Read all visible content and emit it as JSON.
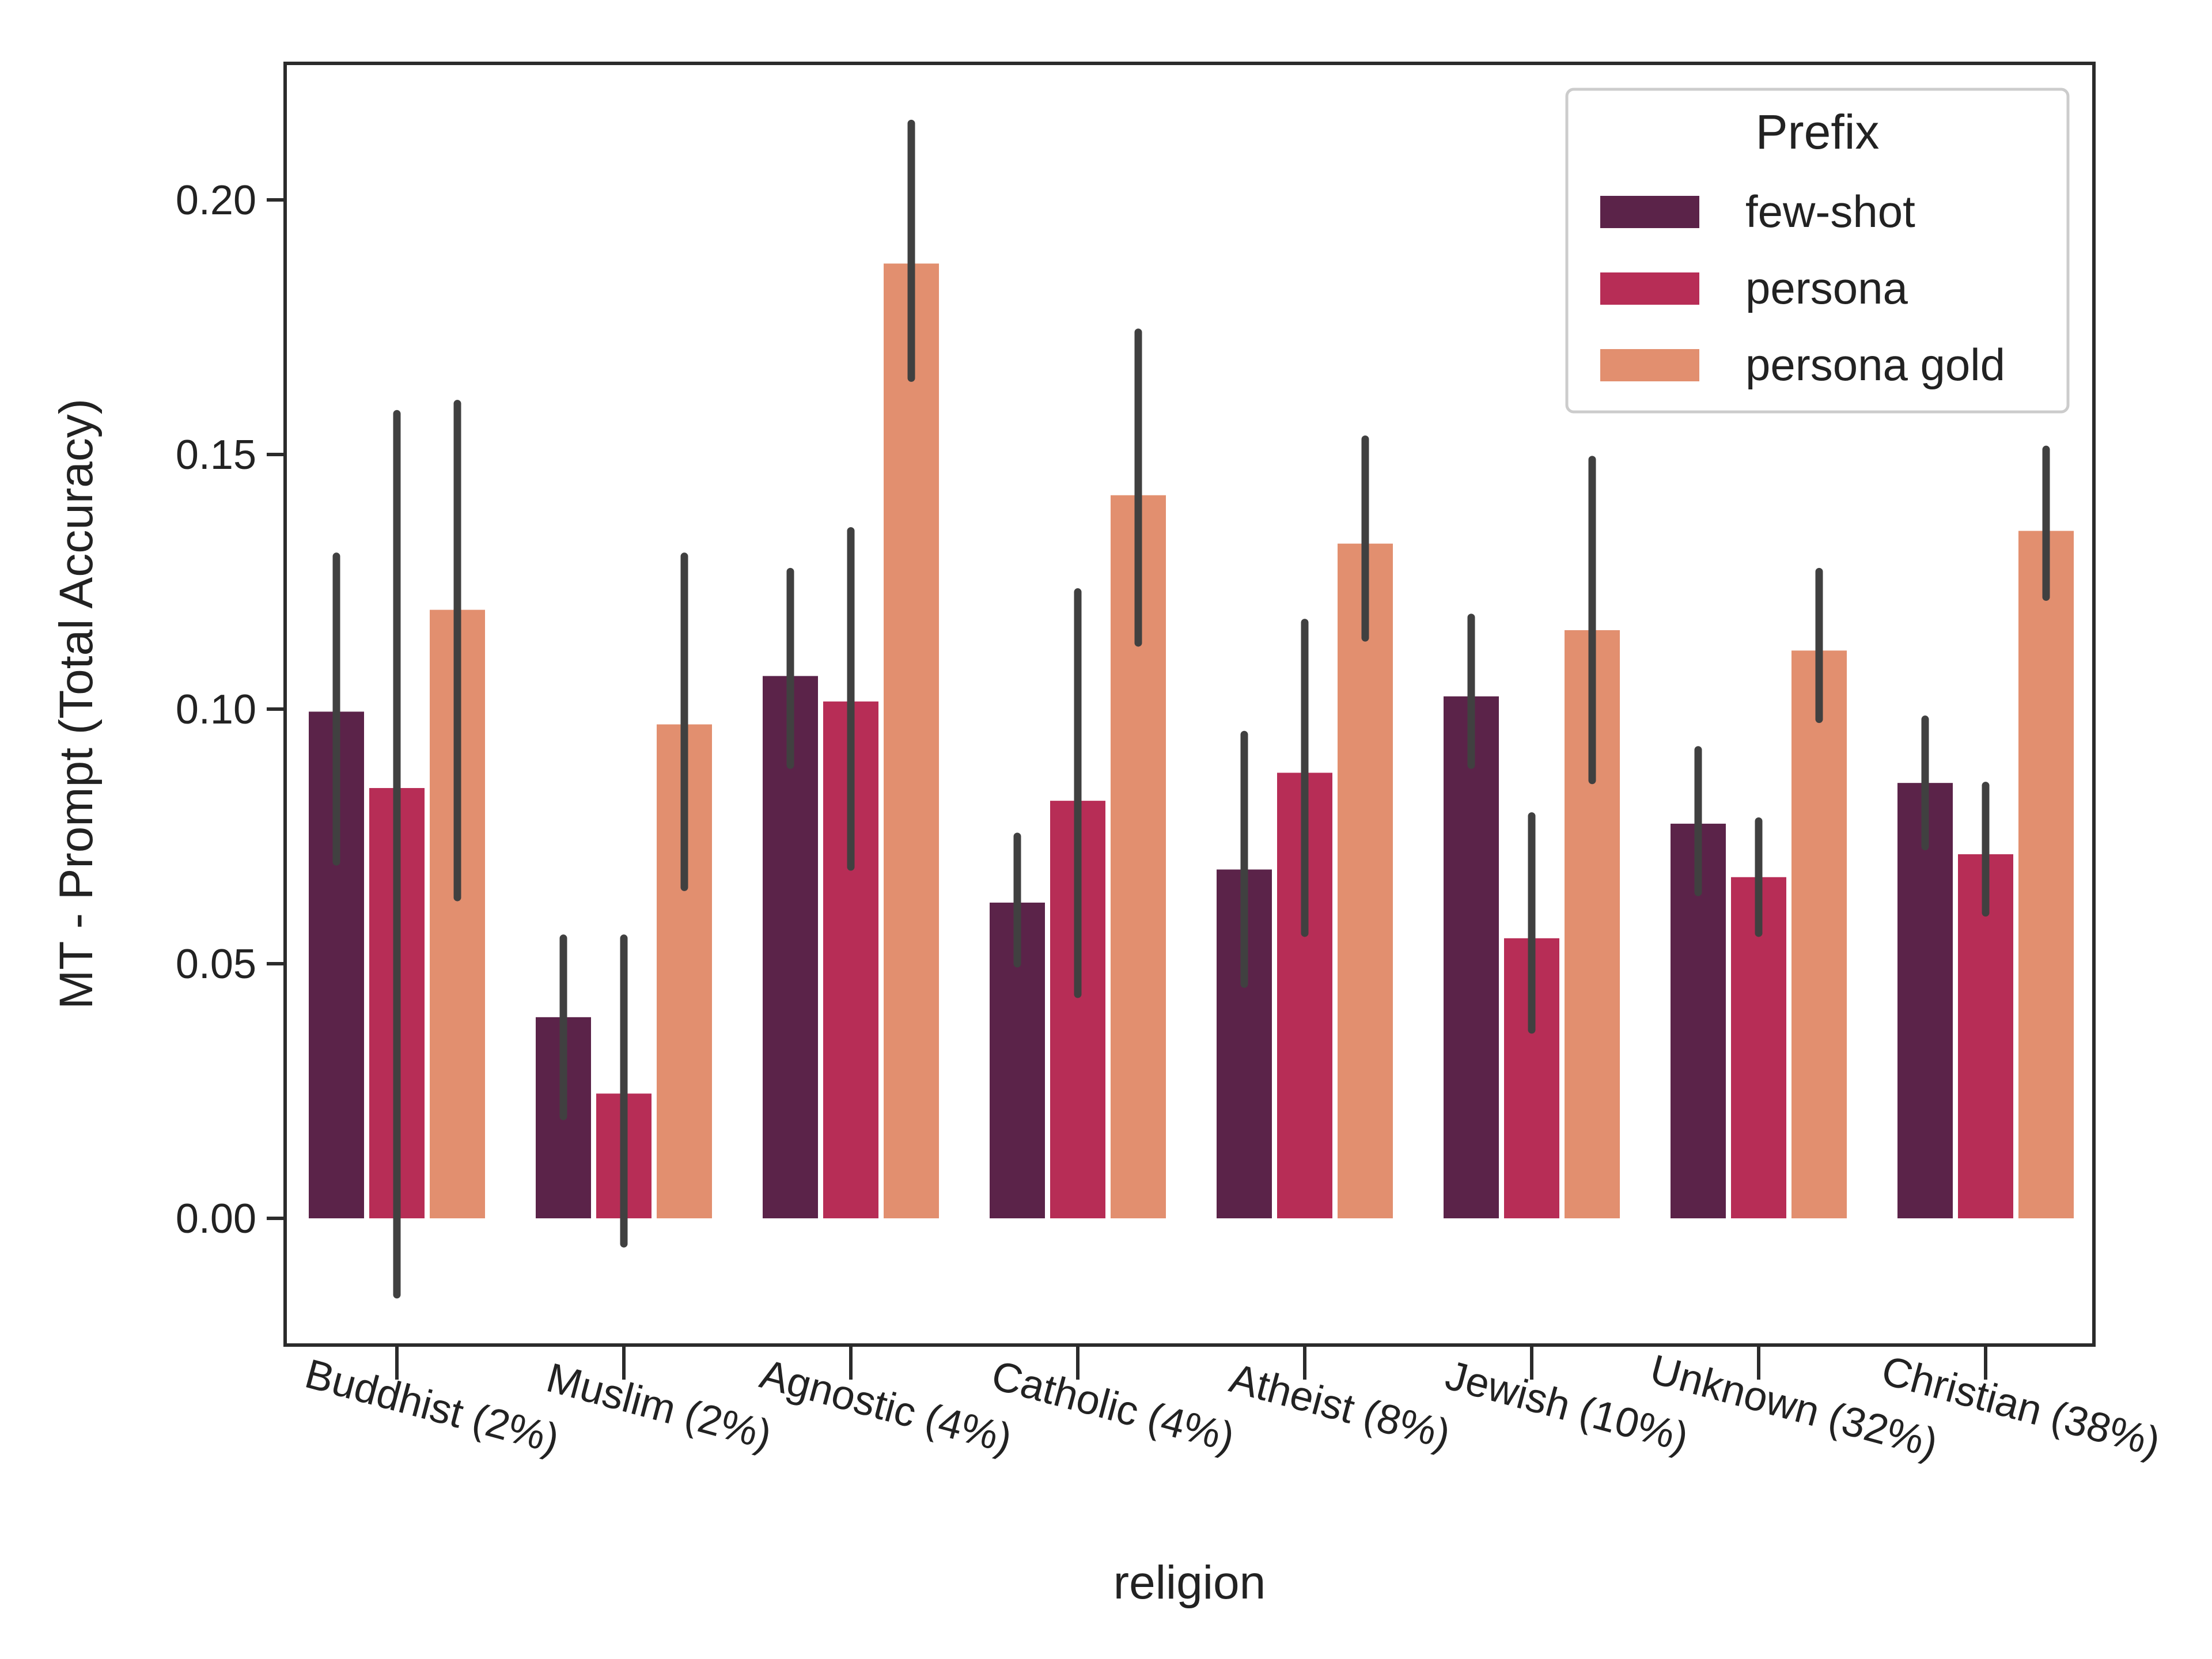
{
  "chart_data": {
    "type": "bar",
    "title": "",
    "xlabel": "religion",
    "ylabel": "MT - Prompt (Total Accuracy)",
    "ylim": [
      -0.026,
      0.225
    ],
    "yticks": [
      0.0,
      0.05,
      0.1,
      0.15,
      0.2
    ],
    "ytick_labels": [
      "0.00",
      "0.05",
      "0.10",
      "0.15",
      "0.20"
    ],
    "grid": false,
    "legend": {
      "title": "Prefix",
      "position": "top-right"
    },
    "categories": [
      "Buddhist (2%)",
      "Muslim (2%)",
      "Agnostic (4%)",
      "Catholic (4%)",
      "Atheist (8%)",
      "Jewish (10%)",
      "Unknown (32%)",
      "Christian (38%)"
    ],
    "series": [
      {
        "name": "few-shot",
        "color": "#5b2349",
        "values": [
          0.0995,
          0.0395,
          0.1065,
          0.062,
          0.0685,
          0.1025,
          0.0775,
          0.0855
        ],
        "ci_low": [
          0.07,
          0.02,
          0.089,
          0.05,
          0.046,
          0.089,
          0.064,
          0.073
        ],
        "ci_high": [
          0.13,
          0.055,
          0.127,
          0.075,
          0.095,
          0.118,
          0.092,
          0.098
        ]
      },
      {
        "name": "persona",
        "color": "#b72d56",
        "values": [
          0.0845,
          0.0245,
          0.1015,
          0.082,
          0.0875,
          0.055,
          0.067,
          0.0715
        ],
        "ci_low": [
          -0.015,
          -0.005,
          0.069,
          0.044,
          0.056,
          0.037,
          0.056,
          0.06
        ],
        "ci_high": [
          0.158,
          0.055,
          0.135,
          0.123,
          0.117,
          0.079,
          0.078,
          0.085
        ]
      },
      {
        "name": "persona gold",
        "color": "#e28f6f",
        "values": [
          0.1195,
          0.097,
          0.1875,
          0.142,
          0.1325,
          0.1155,
          0.1115,
          0.135
        ],
        "ci_low": [
          0.063,
          0.065,
          0.165,
          0.113,
          0.114,
          0.086,
          0.098,
          0.122
        ],
        "ci_high": [
          0.16,
          0.13,
          0.215,
          0.174,
          0.153,
          0.149,
          0.127,
          0.151
        ]
      }
    ]
  }
}
